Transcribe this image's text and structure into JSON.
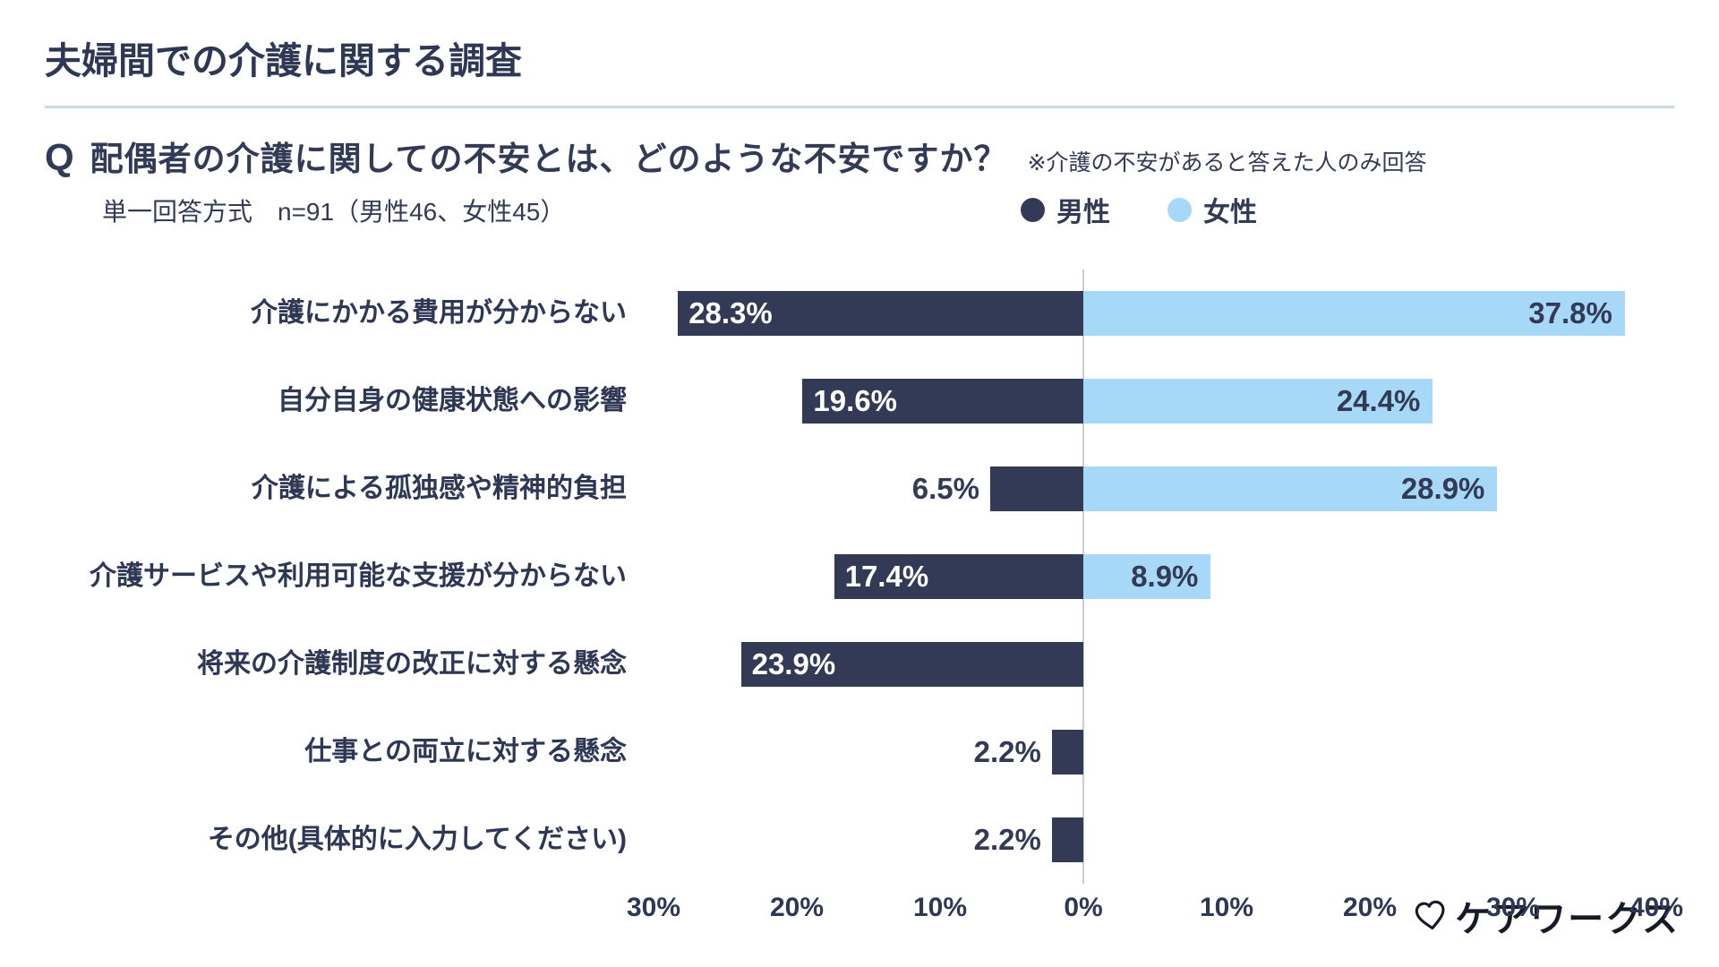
{
  "header": {
    "title": "夫婦間での介護に関する調査"
  },
  "question": {
    "marker": "Q",
    "text": "配偶者の介護に関しての不安とは、どのような不安ですか？",
    "note": "※介護の不安があると答えた人のみ回答",
    "method": "単一回答方式　n=91（男性46、女性45）"
  },
  "legend": [
    {
      "label": "男性",
      "color": "#333a56"
    },
    {
      "label": "女性",
      "color": "#a8d8f7"
    }
  ],
  "chart_data": {
    "type": "bar",
    "variant": "horizontal-diverging",
    "title": "配偶者の介護に関しての不安とは、どのような不安ですか？",
    "categories": [
      "介護にかかる費用が分からない",
      "自分自身の健康状態への影響",
      "介護による孤独感や精神的負担",
      "介護サービスや利用可能な支援が分からない",
      "将来の介護制度の改正に対する懸念",
      "仕事との両立に対する懸念",
      "その他(具体的に入力してください)"
    ],
    "series": [
      {
        "name": "男性",
        "side": "left",
        "color": "#333a56",
        "values": [
          28.3,
          19.6,
          6.5,
          17.4,
          23.9,
          2.2,
          2.2
        ]
      },
      {
        "name": "女性",
        "side": "right",
        "color": "#a8d8f7",
        "values": [
          37.8,
          24.4,
          28.9,
          8.9,
          null,
          null,
          null
        ]
      }
    ],
    "value_suffix": "%",
    "value_label_color": "#333a56",
    "value_label_inside_color": "#ffffff",
    "inside_label_threshold": 10,
    "axis": {
      "left_max": 30,
      "right_max": 40,
      "grid": "center-line-only",
      "ticks": [
        {
          "value": -30,
          "label": "30%"
        },
        {
          "value": -20,
          "label": "20%"
        },
        {
          "value": -10,
          "label": "10%"
        },
        {
          "value": 0,
          "label": "0%"
        },
        {
          "value": 10,
          "label": "10%"
        },
        {
          "value": 20,
          "label": "20%"
        },
        {
          "value": 30,
          "label": "30%"
        },
        {
          "value": 40,
          "label": "40%"
        }
      ]
    },
    "legend_position": "top-right"
  },
  "footer": {
    "logo_icon": "heart-outline-icon",
    "logo_text": "ケアワークス"
  }
}
